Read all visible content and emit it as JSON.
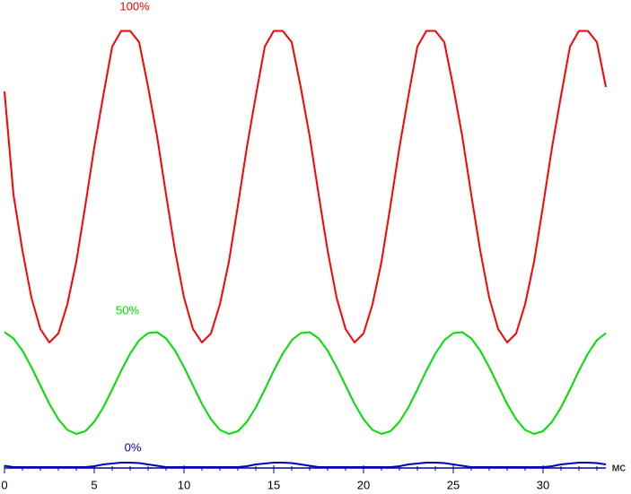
{
  "chart_data": {
    "type": "line",
    "x_label": "мс",
    "x": [
      0,
      0.5,
      1,
      1.5,
      2,
      2.5,
      3,
      3.5,
      4,
      4.5,
      5,
      5.5,
      6,
      6.5,
      7,
      7.5,
      8,
      8.5,
      9,
      9.5,
      10,
      10.5,
      11,
      11.5,
      12,
      12.5,
      13,
      13.5,
      14,
      14.5,
      15,
      15.5,
      16,
      16.5,
      17,
      17.5,
      18,
      18.5,
      19,
      19.5,
      20,
      20.5,
      21,
      21.5,
      22,
      22.5,
      23,
      23.5,
      24,
      24.5,
      25,
      25.5,
      26,
      26.5,
      27,
      27.5,
      28,
      28.5,
      29,
      29.5,
      30,
      30.5,
      31,
      31.5,
      32,
      32.5,
      33,
      33.5
    ],
    "series": [
      {
        "name": "100%",
        "color": "#ff0000",
        "values": [
          84,
          61,
          48.5,
          38,
          31,
          28,
          30,
          36.5,
          46,
          58.5,
          71.5,
          83,
          94,
          97.5,
          97.5,
          95,
          85,
          74,
          61,
          48.5,
          38,
          31,
          28,
          30,
          36.5,
          46,
          58.5,
          71.5,
          83,
          94,
          97.5,
          97.5,
          95,
          85,
          74,
          61,
          48.5,
          38,
          31,
          28,
          30,
          36.5,
          46,
          58.5,
          71.5,
          83,
          94,
          97.5,
          97.5,
          95,
          85,
          74,
          61,
          48.5,
          38,
          31,
          28,
          30,
          36.5,
          46,
          58.5,
          71.5,
          83,
          94,
          97.5,
          97.5,
          95,
          85
        ]
      },
      {
        "name": "50%",
        "color": "#00e000",
        "values": [
          30.3,
          28.9,
          26.2,
          22.5,
          18.4,
          14.3,
          10.9,
          8.5,
          7.6,
          8.2,
          10.3,
          13.5,
          17.5,
          21.7,
          25.5,
          28.5,
          30.1,
          30.3,
          28.9,
          26.2,
          22.5,
          18.4,
          14.3,
          10.9,
          8.5,
          7.6,
          8.2,
          10.3,
          13.5,
          17.5,
          21.7,
          25.5,
          28.5,
          30.1,
          30.3,
          28.9,
          26.2,
          22.5,
          18.4,
          14.3,
          10.9,
          8.5,
          7.6,
          8.2,
          10.3,
          13.5,
          17.5,
          21.7,
          25.5,
          28.5,
          30.1,
          30.3,
          28.9,
          26.2,
          22.5,
          18.4,
          14.3,
          10.9,
          8.5,
          7.6,
          8.2,
          10.3,
          13.5,
          17.5,
          21.7,
          25.5,
          28.5,
          30.1
        ]
      },
      {
        "name": "0%",
        "color": "#0000c0",
        "values": [
          0.5,
          0.2,
          0.2,
          0.2,
          0.2,
          0.2,
          0.2,
          0.2,
          0.2,
          0.2,
          0.4,
          0.8,
          1.0,
          1.2,
          1.2,
          1.1,
          0.8,
          0.5,
          0.2,
          0.2,
          0.2,
          0.2,
          0.2,
          0.2,
          0.2,
          0.2,
          0.2,
          0.4,
          0.8,
          1.0,
          1.2,
          1.2,
          1.1,
          0.8,
          0.5,
          0.2,
          0.2,
          0.2,
          0.2,
          0.2,
          0.2,
          0.2,
          0.2,
          0.2,
          0.4,
          0.8,
          1.0,
          1.2,
          1.2,
          1.1,
          0.8,
          0.5,
          0.2,
          0.2,
          0.2,
          0.2,
          0.2,
          0.2,
          0.2,
          0.2,
          0.2,
          0.4,
          0.8,
          1.0,
          1.2,
          1.2,
          1.1,
          0.8
        ]
      }
    ],
    "xlim": [
      0,
      33.5
    ],
    "ylim": [
      0,
      100
    ],
    "xticks": [
      0,
      5,
      10,
      15,
      20,
      25,
      30
    ],
    "xminorticks": [
      0,
      1,
      2,
      3,
      4,
      5,
      6,
      7,
      8,
      9,
      10,
      11,
      12,
      13,
      14,
      15,
      16,
      17,
      18,
      19,
      20,
      21,
      22,
      23,
      24,
      25,
      26,
      27,
      28,
      29,
      30,
      31,
      32,
      33
    ],
    "grid": false
  }
}
